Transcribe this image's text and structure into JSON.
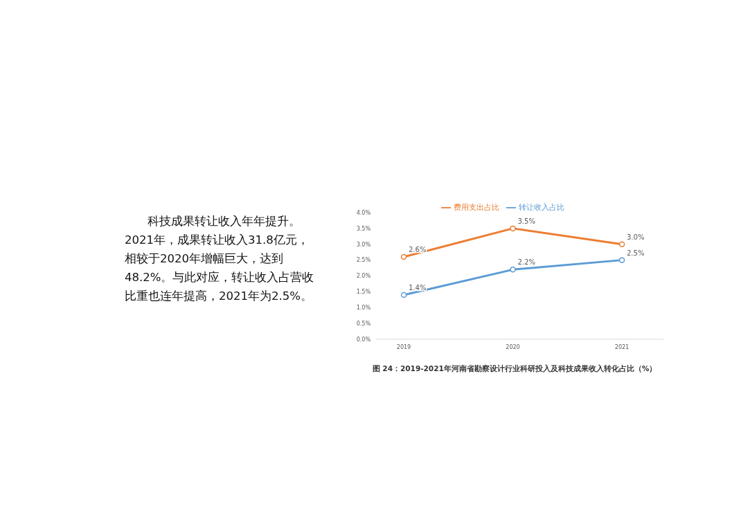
{
  "chart_data": {
    "type": "line",
    "categories": [
      "2019",
      "2020",
      "2021"
    ],
    "series": [
      {
        "name": "费用支出占比",
        "color": "#ed7d31",
        "values": [
          2.6,
          3.5,
          3.0
        ],
        "value_labels": [
          "2.6%",
          "3.5%",
          "3.0%"
        ]
      },
      {
        "name": "转让收入占比",
        "color": "#5b9bd5",
        "values": [
          1.4,
          2.2,
          2.5
        ],
        "value_labels": [
          "1.4%",
          "2.2%",
          "2.5%"
        ]
      }
    ],
    "ylim": [
      0,
      4
    ],
    "yticks": [
      {
        "value": 0,
        "label": "0.0%"
      },
      {
        "value": 0.5,
        "label": "0.5%"
      },
      {
        "value": 1,
        "label": "1.0%"
      },
      {
        "value": 1.5,
        "label": "1.5%"
      },
      {
        "value": 2,
        "label": "2.0%"
      },
      {
        "value": 2.5,
        "label": "2.5%"
      },
      {
        "value": 3,
        "label": "3.0%"
      },
      {
        "value": 3.5,
        "label": "3.5%"
      },
      {
        "value": 4,
        "label": "4.0%"
      }
    ],
    "grid": false,
    "legend": "top",
    "marker": "circle",
    "line_style": "solid",
    "annotations": [
      "科技成果转让收入年年提升。2021年，成果转让收入31.8亿元，相较于2020年增幅巨大，达到48.2%。与此对应，转让收入占营收比重也连年提高，2021年为2.5%。",
      "图 24：2019-2021年河南省勘察设计行业科研投入及科技成果收入转化占比（%）"
    ]
  }
}
